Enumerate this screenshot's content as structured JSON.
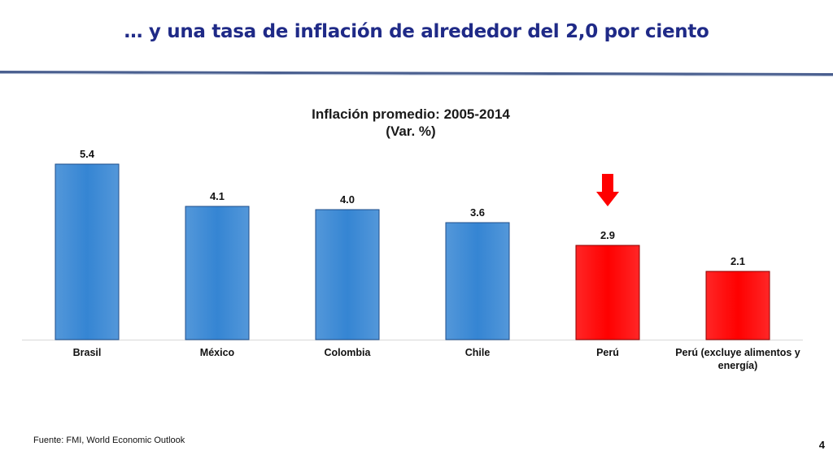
{
  "slide": {
    "title": "… y una tasa de inflación de alrededor del 2,0 por ciento",
    "source": "Fuente: FMI, World Economic Outlook",
    "page_number": "4"
  },
  "colors": {
    "title": "#1f2a87",
    "bar_default": "#3585d3",
    "bar_highlight": "#ff0000",
    "arrow": "#ff0000"
  },
  "chart_data": {
    "type": "bar",
    "title_lines": [
      "Inflación promedio: 2005-2014",
      "(Var. %)"
    ],
    "categories": [
      [
        "Brasil"
      ],
      [
        "México"
      ],
      [
        "Colombia"
      ],
      [
        "Chile"
      ],
      [
        "Perú"
      ],
      [
        "Perú (excluye alimentos y",
        "energía)"
      ]
    ],
    "values": [
      5.4,
      4.1,
      4.0,
      3.6,
      2.9,
      2.1
    ],
    "value_labels": [
      "5.4",
      "4.1",
      "4.0",
      "3.6",
      "2.9",
      "2.1"
    ],
    "highlight": [
      false,
      false,
      false,
      false,
      true,
      true
    ],
    "annotation": "down-arrow above Perú",
    "ylim": [
      0,
      5.4
    ],
    "grid": false,
    "legend": "none"
  }
}
